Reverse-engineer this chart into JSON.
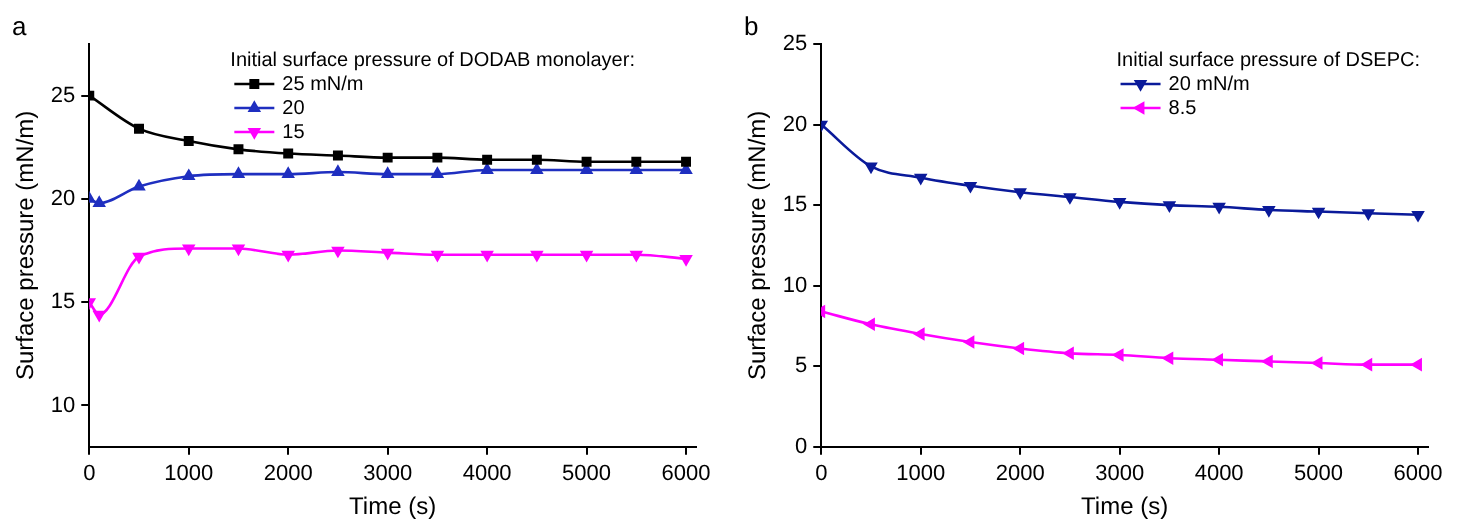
{
  "chart_data": [
    {
      "type": "line",
      "title": "a",
      "xlabel": "Time (s)",
      "ylabel": "Surface pressure (mN/m)",
      "legend_title": "Initial surface pressure of DODAB monolayer:",
      "legend": "top",
      "grid": false,
      "xlim": [
        0,
        6100
      ],
      "xticks": [
        0,
        1000,
        2000,
        3000,
        4000,
        5000,
        6000
      ],
      "ylim": [
        8,
        27.5
      ],
      "yticks": [
        10,
        15,
        20,
        25
      ],
      "x": [
        0,
        500,
        1000,
        1500,
        2000,
        2500,
        3000,
        3500,
        4000,
        4500,
        5000,
        5500,
        6000
      ],
      "series": [
        {
          "name": "25 mN/m",
          "color": "#000000",
          "marker": "square",
          "values": [
            25,
            23.4,
            22.8,
            22.4,
            22.2,
            22.1,
            22.0,
            22.0,
            21.9,
            21.9,
            21.8,
            21.8,
            21.8
          ]
        },
        {
          "name": "20",
          "color": "#1f2fc0",
          "marker": "triangle",
          "x": [
            0,
            100,
            500,
            1000,
            1500,
            2000,
            2500,
            3000,
            3500,
            4000,
            4500,
            5000,
            5500,
            6000
          ],
          "values": [
            20,
            19.8,
            20.6,
            21.1,
            21.2,
            21.2,
            21.3,
            21.2,
            21.2,
            21.4,
            21.4,
            21.4,
            21.4,
            21.4
          ]
        },
        {
          "name": "15",
          "color": "#ff00ff",
          "marker": "triangle-down",
          "x": [
            0,
            100,
            500,
            1000,
            1500,
            2000,
            2500,
            3000,
            3500,
            4000,
            4500,
            5000,
            5500,
            6000
          ],
          "values": [
            15,
            14.4,
            17.2,
            17.6,
            17.6,
            17.3,
            17.5,
            17.4,
            17.3,
            17.3,
            17.3,
            17.3,
            17.3,
            17.1
          ]
        }
      ]
    },
    {
      "type": "line",
      "title": "b",
      "xlabel": "Time (s)",
      "ylabel": "Surface pressure (mN/m)",
      "legend_title": "Initial surface pressure of DSEPC:",
      "legend": "top right",
      "grid": false,
      "xlim": [
        0,
        6100
      ],
      "xticks": [
        0,
        1000,
        2000,
        3000,
        4000,
        5000,
        6000
      ],
      "ylim": [
        0,
        25
      ],
      "yticks": [
        0,
        5,
        10,
        15,
        20,
        25
      ],
      "x": [
        0,
        500,
        1000,
        1500,
        2000,
        2500,
        3000,
        3500,
        4000,
        4500,
        5000,
        5500,
        6000
      ],
      "series": [
        {
          "name": "20 mN/m",
          "color": "#0a1a9a",
          "marker": "triangle-down",
          "values": [
            20,
            17.4,
            16.7,
            16.2,
            15.8,
            15.5,
            15.2,
            15.0,
            14.9,
            14.7,
            14.6,
            14.5,
            14.4
          ]
        },
        {
          "name": "8.5",
          "color": "#ff00ff",
          "marker": "triangle-left",
          "values": [
            8.4,
            7.6,
            7.0,
            6.5,
            6.1,
            5.8,
            5.7,
            5.5,
            5.4,
            5.3,
            5.2,
            5.1,
            5.1
          ]
        }
      ]
    }
  ]
}
